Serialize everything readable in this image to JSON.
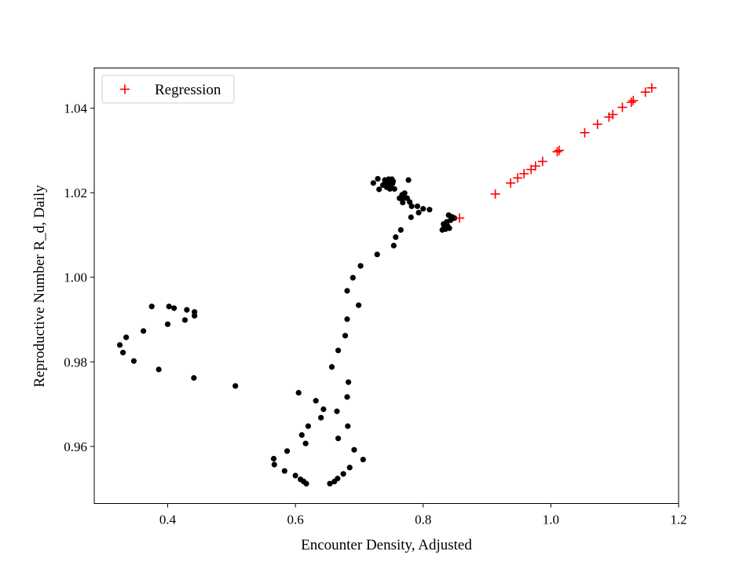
{
  "chart_data": {
    "type": "scatter",
    "xlabel": "Encounter Density, Adjusted",
    "ylabel": "Reproductive Number R_d, Daily",
    "xlim": [
      0.285,
      1.2
    ],
    "ylim": [
      0.9465,
      1.0495
    ],
    "xticks": [
      0.4,
      0.6,
      0.8,
      1.0,
      1.2
    ],
    "xtick_labels": [
      "0.4",
      "0.6",
      "0.8",
      "1.0",
      "1.2"
    ],
    "yticks": [
      0.96,
      0.98,
      1.0,
      1.02,
      1.04
    ],
    "ytick_labels": [
      "0.96",
      "0.98",
      "1.00",
      "1.02",
      "1.04"
    ],
    "grid": false,
    "legend_position": "top-left",
    "series": [
      {
        "marker": "dot",
        "color": "#000000",
        "points": [
          [
            0.325,
            0.984
          ],
          [
            0.33,
            0.9822
          ],
          [
            0.335,
            0.9858
          ],
          [
            0.347,
            0.9802
          ],
          [
            0.362,
            0.9873
          ],
          [
            0.375,
            0.9931
          ],
          [
            0.386,
            0.9782
          ],
          [
            0.4,
            0.9889
          ],
          [
            0.402,
            0.9931
          ],
          [
            0.41,
            0.9927
          ],
          [
            0.427,
            0.9899
          ],
          [
            0.43,
            0.9923
          ],
          [
            0.442,
            0.9918
          ],
          [
            0.442,
            0.9909
          ],
          [
            0.441,
            0.9762
          ],
          [
            0.506,
            0.9743
          ],
          [
            0.566,
            0.9571
          ],
          [
            0.567,
            0.9557
          ],
          [
            0.583,
            0.9542
          ],
          [
            0.587,
            0.9589
          ],
          [
            0.6,
            0.9531
          ],
          [
            0.605,
            0.9727
          ],
          [
            0.608,
            0.9522
          ],
          [
            0.61,
            0.9627
          ],
          [
            0.613,
            0.9517
          ],
          [
            0.617,
            0.9512
          ],
          [
            0.616,
            0.9607
          ],
          [
            0.62,
            0.9648
          ],
          [
            0.632,
            0.9708
          ],
          [
            0.64,
            0.9668
          ],
          [
            0.644,
            0.9688
          ],
          [
            0.654,
            0.9512
          ],
          [
            0.657,
            0.9788
          ],
          [
            0.661,
            0.9517
          ],
          [
            0.665,
            0.9683
          ],
          [
            0.666,
            0.9524
          ],
          [
            0.667,
            0.9827
          ],
          [
            0.667,
            0.9619
          ],
          [
            0.675,
            0.9535
          ],
          [
            0.678,
            0.9862
          ],
          [
            0.681,
            0.9968
          ],
          [
            0.681,
            0.9901
          ],
          [
            0.681,
            0.9717
          ],
          [
            0.682,
            0.9648
          ],
          [
            0.683,
            0.9752
          ],
          [
            0.685,
            0.955
          ],
          [
            0.69,
            0.9999
          ],
          [
            0.692,
            0.9592
          ],
          [
            0.699,
            0.9934
          ],
          [
            0.702,
            1.0027
          ],
          [
            0.706,
            0.9569
          ],
          [
            0.722,
            1.0223
          ],
          [
            0.728,
            1.0054
          ],
          [
            0.729,
            1.0233
          ],
          [
            0.731,
            1.0208
          ],
          [
            0.737,
            1.0218
          ],
          [
            0.74,
            1.023
          ],
          [
            0.741,
            1.0225
          ],
          [
            0.743,
            1.0213
          ],
          [
            0.745,
            1.0221
          ],
          [
            0.746,
            1.0232
          ],
          [
            0.748,
            1.0209
          ],
          [
            0.749,
            1.0218
          ],
          [
            0.75,
            1.0228
          ],
          [
            0.751,
            1.0232
          ],
          [
            0.752,
            1.0222
          ],
          [
            0.753,
            1.0227
          ],
          [
            0.754,
            1.0075
          ],
          [
            0.755,
            1.0209
          ],
          [
            0.757,
            1.0095
          ],
          [
            0.763,
            1.0187
          ],
          [
            0.765,
            1.0112
          ],
          [
            0.767,
            1.0195
          ],
          [
            0.768,
            1.0177
          ],
          [
            0.77,
            1.0188
          ],
          [
            0.771,
            1.0199
          ],
          [
            0.775,
            1.0187
          ],
          [
            0.777,
            1.023
          ],
          [
            0.779,
            1.0178
          ],
          [
            0.781,
            1.0142
          ],
          [
            0.782,
            1.0168
          ],
          [
            0.791,
            1.0168
          ],
          [
            0.793,
            1.0153
          ],
          [
            0.8,
            1.0162
          ],
          [
            0.81,
            1.016
          ],
          [
            0.83,
            1.0112
          ],
          [
            0.832,
            1.0126
          ],
          [
            0.833,
            1.0118
          ],
          [
            0.835,
            1.0114
          ],
          [
            0.837,
            1.0131
          ],
          [
            0.838,
            1.0122
          ],
          [
            0.84,
            1.0147
          ],
          [
            0.841,
            1.0116
          ],
          [
            0.843,
            1.0135
          ],
          [
            0.845,
            1.0143
          ],
          [
            0.849,
            1.014
          ]
        ]
      },
      {
        "name": "Regression",
        "marker": "plus",
        "color": "#ff0000",
        "points": [
          [
            0.857,
            1.014
          ],
          [
            0.913,
            1.0197
          ],
          [
            0.937,
            1.0223
          ],
          [
            0.948,
            1.0235
          ],
          [
            0.958,
            1.0245
          ],
          [
            0.969,
            1.0255
          ],
          [
            0.976,
            1.0263
          ],
          [
            0.987,
            1.0274
          ],
          [
            1.01,
            1.0297
          ],
          [
            1.013,
            1.03
          ],
          [
            1.053,
            1.0342
          ],
          [
            1.073,
            1.0362
          ],
          [
            1.091,
            1.0379
          ],
          [
            1.097,
            1.0385
          ],
          [
            1.112,
            1.0402
          ],
          [
            1.126,
            1.0414
          ],
          [
            1.129,
            1.0418
          ],
          [
            1.148,
            1.0438
          ],
          [
            1.158,
            1.0448
          ]
        ]
      }
    ]
  }
}
